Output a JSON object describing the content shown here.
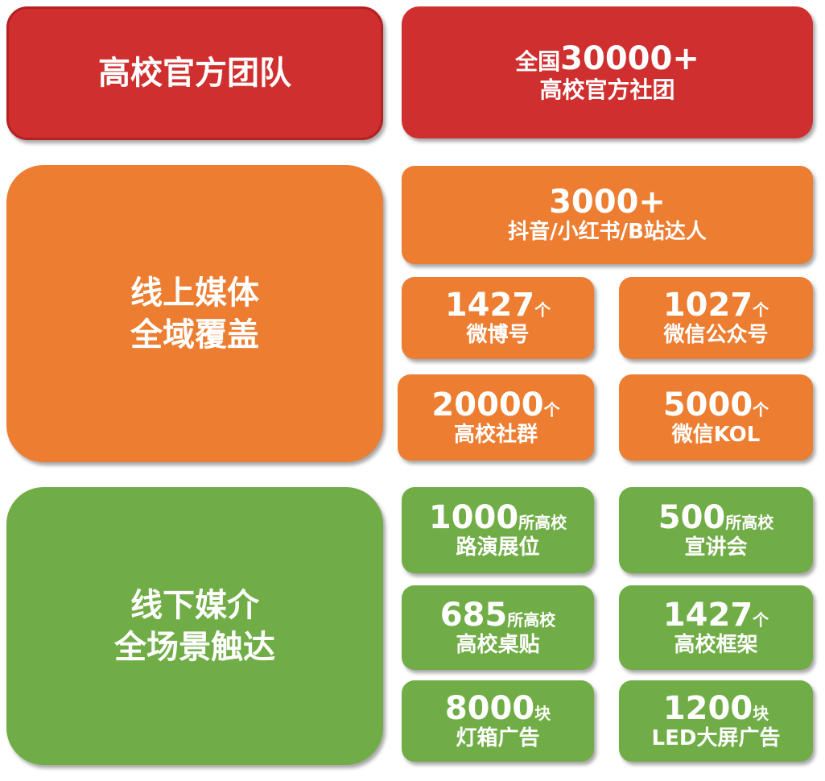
{
  "colors": {
    "red": "#d02f2f",
    "orange": "#ed7d31",
    "green": "#70ad47"
  },
  "team": {
    "title": "高校官方团队",
    "line1_prefix": "全国",
    "line1_num": "30000+",
    "line2": "高校官方社团"
  },
  "online": {
    "title_line1": "线上媒体",
    "title_line2": "全域覆盖",
    "items": [
      {
        "num": "3000+",
        "unit": "",
        "label": "抖音/小红书/B站达人"
      },
      {
        "num": "1427",
        "unit": "个",
        "label": "微博号"
      },
      {
        "num": "1027",
        "unit": "个",
        "label": "微信公众号"
      },
      {
        "num": "20000",
        "unit": "个",
        "label": "高校社群"
      },
      {
        "num": "5000",
        "unit": "个",
        "label": "微信KOL"
      }
    ]
  },
  "offline": {
    "title_line1": "线下媒介",
    "title_line2": "全场景触达",
    "items": [
      {
        "num": "1000",
        "unit": "所高校",
        "label": "路演展位"
      },
      {
        "num": "500",
        "unit": "所高校",
        "label": "宣讲会"
      },
      {
        "num": "685",
        "unit": "所高校",
        "label": "高校桌贴"
      },
      {
        "num": "1427",
        "unit": "个",
        "label": "高校框架"
      },
      {
        "num": "8000",
        "unit": "块",
        "label": "灯箱广告"
      },
      {
        "num": "1200",
        "unit": "块",
        "label": "LED大屏广告"
      }
    ]
  }
}
